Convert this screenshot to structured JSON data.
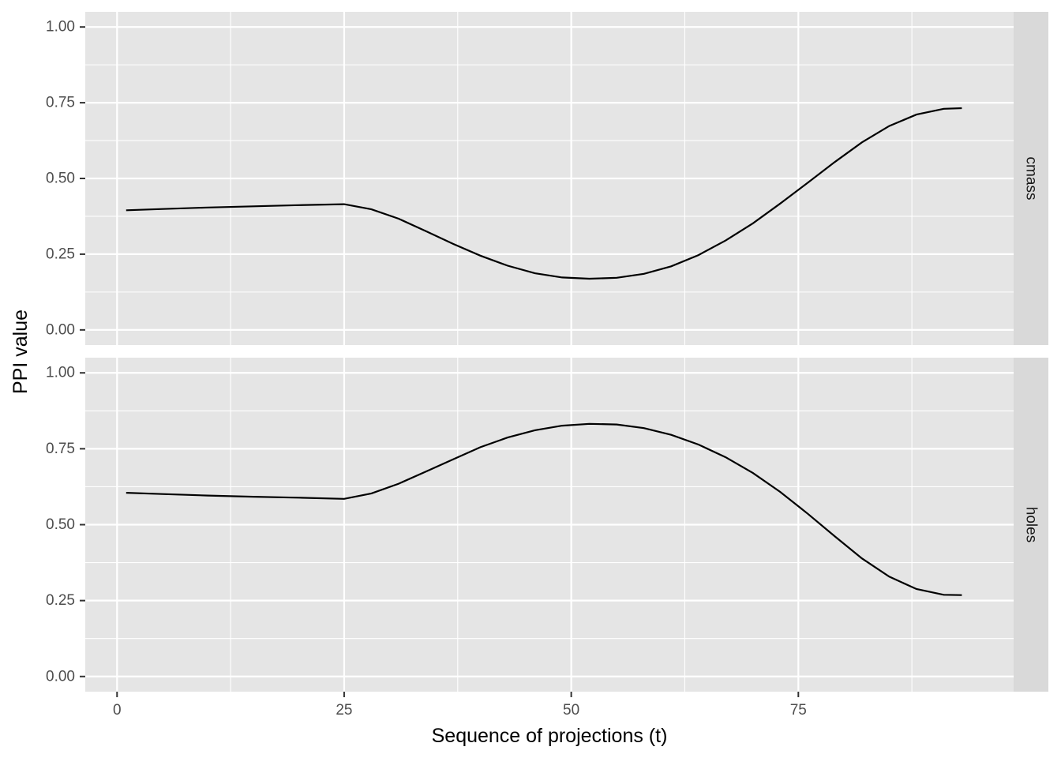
{
  "chart_data": {
    "type": "line",
    "xlabel": "Sequence of projections (t)",
    "ylabel": "PPI value",
    "xlim": [
      -3.5,
      98.7
    ],
    "ylim": [
      -0.05,
      1.05
    ],
    "x_ticks": [
      0,
      25,
      50,
      75
    ],
    "x_tick_labels": [
      "0",
      "25",
      "50",
      "75"
    ],
    "y_ticks": [
      0,
      0.25,
      0.5,
      0.75,
      1.0
    ],
    "y_tick_labels": [
      "0.00",
      "0.25",
      "0.50",
      "0.75",
      "1.00"
    ],
    "grid": true,
    "facets": [
      {
        "label": "cmass",
        "x": [
          1,
          5,
          10,
          15,
          20,
          25,
          28,
          31,
          34,
          37,
          40,
          43,
          46,
          49,
          52,
          55,
          58,
          61,
          64,
          67,
          70,
          73,
          76,
          79,
          82,
          85,
          88,
          91,
          93
        ],
        "y": [
          0.395,
          0.399,
          0.404,
          0.408,
          0.412,
          0.415,
          0.398,
          0.367,
          0.326,
          0.284,
          0.245,
          0.212,
          0.187,
          0.173,
          0.169,
          0.172,
          0.185,
          0.21,
          0.247,
          0.295,
          0.352,
          0.417,
          0.485,
          0.554,
          0.619,
          0.673,
          0.711,
          0.73,
          0.732
        ]
      },
      {
        "label": "holes",
        "x": [
          1,
          5,
          10,
          15,
          20,
          25,
          28,
          31,
          34,
          37,
          40,
          43,
          46,
          49,
          52,
          55,
          58,
          61,
          64,
          67,
          70,
          73,
          76,
          79,
          82,
          85,
          88,
          91,
          93
        ],
        "y": [
          0.605,
          0.601,
          0.596,
          0.592,
          0.589,
          0.585,
          0.603,
          0.635,
          0.675,
          0.715,
          0.755,
          0.787,
          0.811,
          0.826,
          0.832,
          0.83,
          0.818,
          0.796,
          0.764,
          0.722,
          0.67,
          0.608,
          0.537,
          0.462,
          0.389,
          0.329,
          0.288,
          0.269,
          0.268
        ]
      }
    ]
  }
}
